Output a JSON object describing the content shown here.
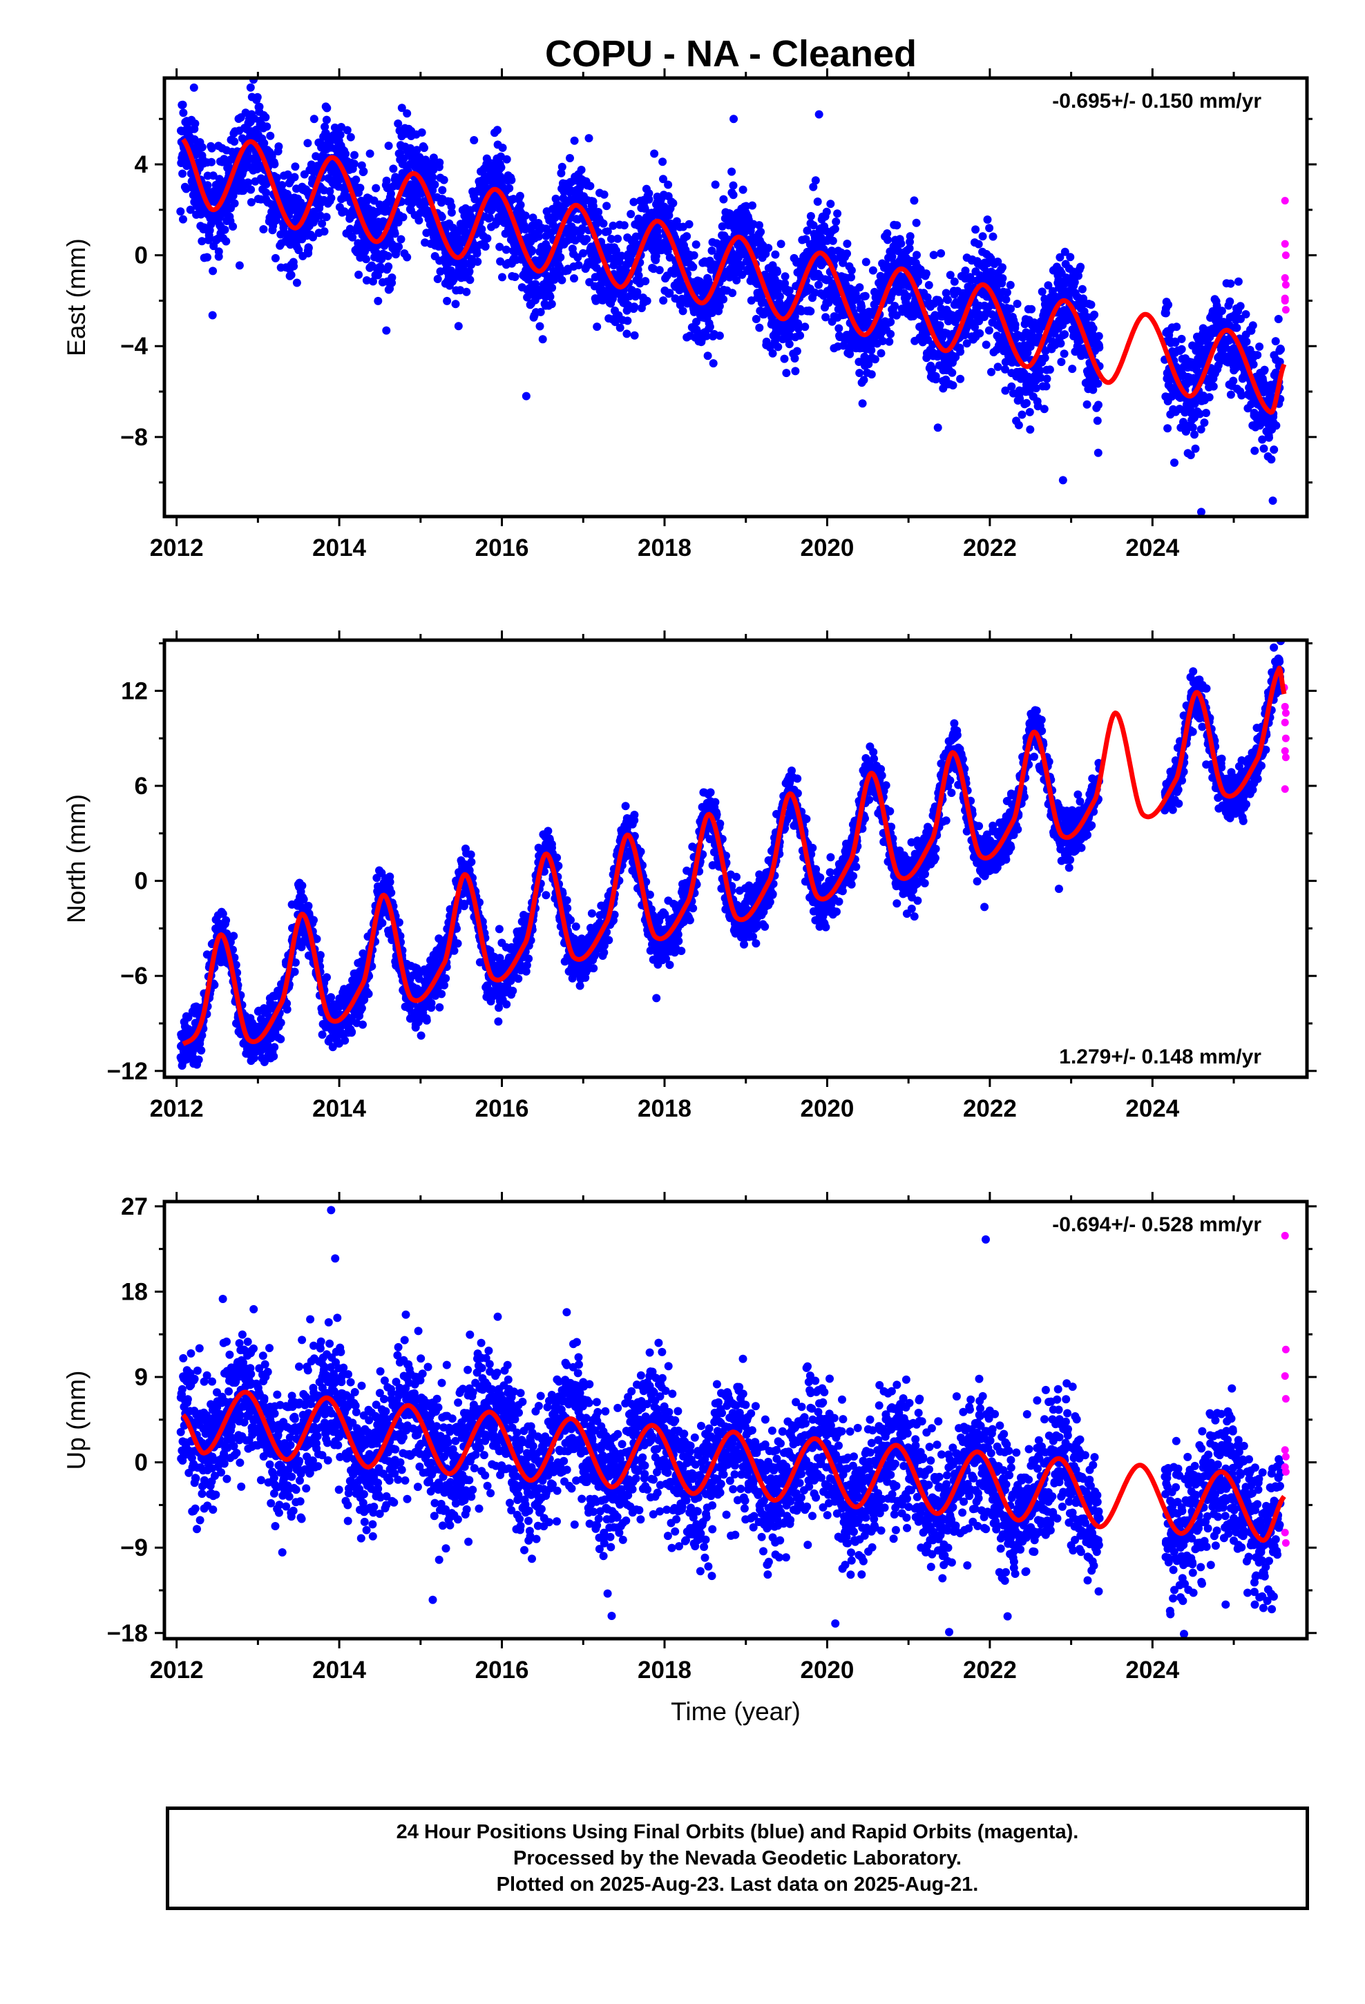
{
  "title": "COPU  - NA - Cleaned",
  "colors": {
    "final_orbits": "#0000ff",
    "rapid_orbits": "#ff00ff",
    "model": "#ff0000",
    "axes": "#000000"
  },
  "chart_data": [
    {
      "type": "scatter",
      "id": "east",
      "ylabel": "East (mm)",
      "rate_label": "-0.695+/- 0.150 mm/yr",
      "rate_position": "top-right",
      "xlim": [
        2011.85,
        2025.9
      ],
      "ylim": [
        -11.5,
        7.8
      ],
      "yticks": [
        -8,
        -4,
        0,
        4
      ],
      "xticks": [
        2012,
        2014,
        2016,
        2018,
        2020,
        2022,
        2024
      ],
      "grid": false,
      "model": {
        "name": "",
        "rate_mm_per_yr": -0.695,
        "offset_at_2012": 3.75,
        "annual_cos": 0.74,
        "annual_sin": 1.7,
        "semiannual_cos": 0.2,
        "semiannual_sin": 0.25,
        "segments": [
          [
            2012.08,
            2025.62
          ]
        ],
        "anchors": [
          [
            2012.08,
            5.1
          ],
          [
            2012.45,
            2.0
          ],
          [
            2012.92,
            5.0
          ],
          [
            2013.45,
            1.2
          ],
          [
            2013.92,
            4.3
          ],
          [
            2014.45,
            0.6
          ],
          [
            2014.92,
            3.6
          ],
          [
            2015.45,
            -0.1
          ],
          [
            2015.92,
            2.9
          ],
          [
            2016.45,
            -0.7
          ],
          [
            2016.92,
            2.2
          ],
          [
            2017.45,
            -1.4
          ],
          [
            2017.92,
            1.5
          ],
          [
            2018.45,
            -2.1
          ],
          [
            2018.92,
            0.8
          ],
          [
            2019.45,
            -2.8
          ],
          [
            2019.92,
            0.1
          ],
          [
            2020.45,
            -3.5
          ],
          [
            2020.92,
            -0.6
          ],
          [
            2021.45,
            -4.2
          ],
          [
            2021.92,
            -1.3
          ],
          [
            2022.45,
            -4.9
          ],
          [
            2022.92,
            -2.0
          ],
          [
            2023.45,
            -5.6
          ],
          [
            2023.92,
            -2.6
          ],
          [
            2024.45,
            -6.2
          ],
          [
            2024.92,
            -3.3
          ],
          [
            2025.45,
            -6.9
          ],
          [
            2025.62,
            -4.8
          ]
        ]
      },
      "final_orbits": {
        "name": "",
        "start": 2012.05,
        "end": 2025.58,
        "density_per_yr": 330,
        "noise_sd": 1.15,
        "gaps": [
          [
            2023.35,
            2024.15
          ]
        ],
        "outliers": [
          [
            2016.3,
            -6.2
          ],
          [
            2022.9,
            -9.9
          ],
          [
            2024.6,
            -11.3
          ],
          [
            2025.48,
            -10.8
          ],
          [
            2018.85,
            6.0
          ],
          [
            2019.9,
            6.2
          ]
        ]
      },
      "rapid_orbits": {
        "name": "",
        "points": [
          [
            2025.63,
            2.4
          ],
          [
            2025.63,
            0.5
          ],
          [
            2025.64,
            0.0
          ],
          [
            2025.63,
            -1.0
          ],
          [
            2025.64,
            -1.3
          ],
          [
            2025.63,
            -1.9
          ],
          [
            2025.64,
            -2.4
          ],
          [
            2025.63,
            -2.0
          ]
        ]
      }
    },
    {
      "type": "scatter",
      "id": "north",
      "ylabel": "North (mm)",
      "rate_label": "1.279+/- 0.148 mm/yr",
      "rate_position": "bottom-right",
      "xlim": [
        2011.85,
        2025.9
      ],
      "ylim": [
        -12.4,
        15.2
      ],
      "yticks": [
        -12,
        -6,
        0,
        6,
        12
      ],
      "xticks": [
        2012,
        2014,
        2016,
        2018,
        2020,
        2022,
        2024
      ],
      "grid": false,
      "model": {
        "name": "",
        "rate_mm_per_yr": 1.279,
        "offset_at_2012": -7.5,
        "segments": [
          [
            2012.08,
            2025.62
          ]
        ],
        "anchors": [
          [
            2012.08,
            -10.3
          ],
          [
            2012.3,
            -9.0
          ],
          [
            2012.55,
            -3.4
          ],
          [
            2012.88,
            -10.0
          ],
          [
            2013.3,
            -7.6
          ],
          [
            2013.55,
            -2.1
          ],
          [
            2013.88,
            -8.7
          ],
          [
            2014.3,
            -6.4
          ],
          [
            2014.55,
            -0.9
          ],
          [
            2014.88,
            -7.4
          ],
          [
            2015.3,
            -5.1
          ],
          [
            2015.55,
            0.4
          ],
          [
            2015.88,
            -6.1
          ],
          [
            2016.3,
            -3.8
          ],
          [
            2016.55,
            1.7
          ],
          [
            2016.88,
            -4.8
          ],
          [
            2017.3,
            -2.5
          ],
          [
            2017.55,
            2.9
          ],
          [
            2017.88,
            -3.5
          ],
          [
            2018.3,
            -1.2
          ],
          [
            2018.55,
            4.2
          ],
          [
            2018.88,
            -2.3
          ],
          [
            2019.3,
            0.1
          ],
          [
            2019.55,
            5.5
          ],
          [
            2019.88,
            -1.0
          ],
          [
            2020.3,
            1.4
          ],
          [
            2020.55,
            6.8
          ],
          [
            2020.88,
            0.3
          ],
          [
            2021.3,
            2.7
          ],
          [
            2021.55,
            8.1
          ],
          [
            2021.88,
            1.6
          ],
          [
            2022.3,
            3.9
          ],
          [
            2022.55,
            9.4
          ],
          [
            2022.88,
            2.9
          ],
          [
            2023.3,
            5.2
          ],
          [
            2023.55,
            10.6
          ],
          [
            2023.88,
            4.2
          ],
          [
            2024.3,
            6.5
          ],
          [
            2024.55,
            11.9
          ],
          [
            2024.88,
            5.5
          ],
          [
            2025.3,
            7.8
          ],
          [
            2025.55,
            13.3
          ],
          [
            2025.62,
            11.8
          ]
        ]
      },
      "final_orbits": {
        "name": "",
        "start": 2012.05,
        "end": 2025.58,
        "density_per_yr": 330,
        "noise_sd": 0.85,
        "gaps": [
          [
            2023.35,
            2024.15
          ]
        ],
        "outliers": [
          [
            2012.25,
            -11.6
          ],
          [
            2013.1,
            -11.2
          ],
          [
            2017.9,
            -7.4
          ],
          [
            2022.85,
            -0.5
          ]
        ]
      },
      "rapid_orbits": {
        "name": "",
        "points": [
          [
            2025.62,
            12.2
          ],
          [
            2025.63,
            11.0
          ],
          [
            2025.64,
            10.6
          ],
          [
            2025.63,
            10.0
          ],
          [
            2025.64,
            9.0
          ],
          [
            2025.63,
            8.2
          ],
          [
            2025.64,
            7.8
          ],
          [
            2025.63,
            5.8
          ]
        ]
      }
    },
    {
      "type": "scatter",
      "id": "up",
      "ylabel": "Up (mm)",
      "xlabel": "Time (year)",
      "rate_label": "-0.694+/- 0.528 mm/yr",
      "rate_position": "top-right",
      "xlim": [
        2011.85,
        2025.9
      ],
      "ylim": [
        -18.6,
        27.5
      ],
      "yticks": [
        -18,
        -9,
        0,
        9,
        18,
        27
      ],
      "xticks": [
        2012,
        2014,
        2016,
        2018,
        2020,
        2022,
        2024
      ],
      "grid": false,
      "model": {
        "name": "",
        "rate_mm_per_yr": -0.694,
        "segments": [
          [
            2012.08,
            2025.62
          ]
        ],
        "anchors": [
          [
            2012.08,
            5.0
          ],
          [
            2012.35,
            1.0
          ],
          [
            2012.85,
            7.4
          ],
          [
            2013.35,
            0.3
          ],
          [
            2013.85,
            6.8
          ],
          [
            2014.35,
            -0.5
          ],
          [
            2014.85,
            6.0
          ],
          [
            2015.35,
            -1.2
          ],
          [
            2015.85,
            5.3
          ],
          [
            2016.35,
            -1.9
          ],
          [
            2016.85,
            4.6
          ],
          [
            2017.35,
            -2.6
          ],
          [
            2017.85,
            3.9
          ],
          [
            2018.35,
            -3.3
          ],
          [
            2018.85,
            3.2
          ],
          [
            2019.35,
            -4.0
          ],
          [
            2019.85,
            2.5
          ],
          [
            2020.35,
            -4.7
          ],
          [
            2020.85,
            1.8
          ],
          [
            2021.35,
            -5.4
          ],
          [
            2021.85,
            1.1
          ],
          [
            2022.35,
            -6.1
          ],
          [
            2022.85,
            0.4
          ],
          [
            2023.35,
            -6.8
          ],
          [
            2023.85,
            -0.3
          ],
          [
            2024.35,
            -7.5
          ],
          [
            2024.85,
            -1.0
          ],
          [
            2025.35,
            -8.2
          ],
          [
            2025.62,
            -3.6
          ]
        ]
      },
      "final_orbits": {
        "name": "",
        "start": 2012.05,
        "end": 2025.58,
        "density_per_yr": 330,
        "noise_sd": 3.6,
        "gaps": [
          [
            2023.35,
            2024.15
          ]
        ],
        "outliers": [
          [
            2013.9,
            26.6
          ],
          [
            2013.95,
            21.5
          ],
          [
            2021.95,
            23.5
          ],
          [
            2021.5,
            -17.9
          ],
          [
            2017.35,
            -16.2
          ],
          [
            2020.1,
            -17.0
          ],
          [
            2013.3,
            -9.5
          ],
          [
            2015.15,
            -14.5
          ],
          [
            2024.9,
            -15.0
          ]
        ]
      },
      "rapid_orbits": {
        "name": "",
        "points": [
          [
            2025.63,
            23.9
          ],
          [
            2025.64,
            11.9
          ],
          [
            2025.63,
            9.1
          ],
          [
            2025.64,
            6.7
          ],
          [
            2025.63,
            1.3
          ],
          [
            2025.64,
            0.6
          ],
          [
            2025.63,
            -0.5
          ],
          [
            2025.64,
            -1.0
          ],
          [
            2025.63,
            -7.4
          ],
          [
            2025.64,
            -8.5
          ]
        ]
      }
    }
  ],
  "footer": {
    "line1": "24 Hour Positions Using Final Orbits (blue) and Rapid Orbits (magenta).",
    "line2": "Processed by the Nevada Geodetic Laboratory.",
    "line3": "Plotted on 2025-Aug-23. Last data on 2025-Aug-21."
  }
}
